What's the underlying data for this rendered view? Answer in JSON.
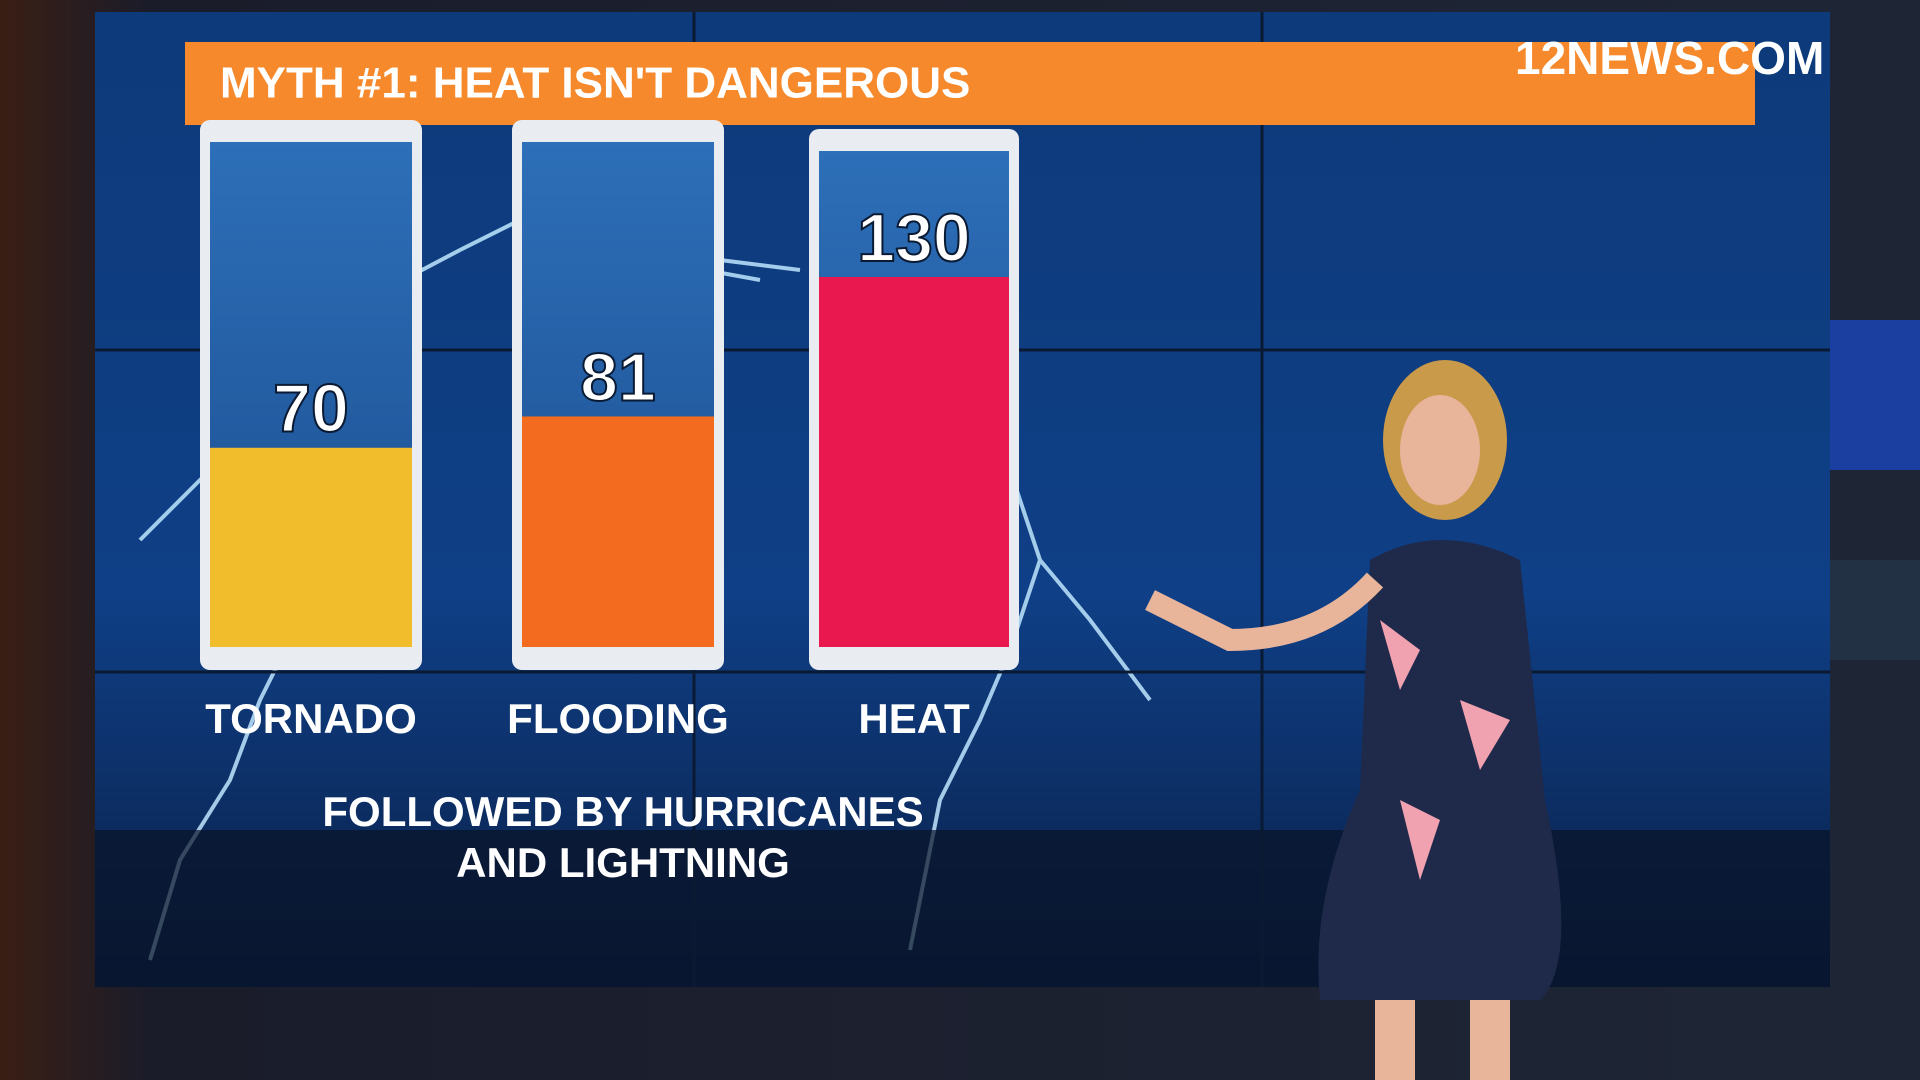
{
  "logo": "12NEWS.COM",
  "chart_data": {
    "type": "bar",
    "title": "MYTH #1: HEAT ISN'T DANGEROUS",
    "categories": [
      "TORNADO",
      "FLOODING",
      "HEAT"
    ],
    "values": [
      70,
      81,
      130
    ],
    "colors": [
      "#f2bd2c",
      "#f26b1e",
      "#e9184f"
    ],
    "annotation": [
      "FOLLOWED BY HURRICANES",
      "AND LIGHTNING"
    ]
  }
}
